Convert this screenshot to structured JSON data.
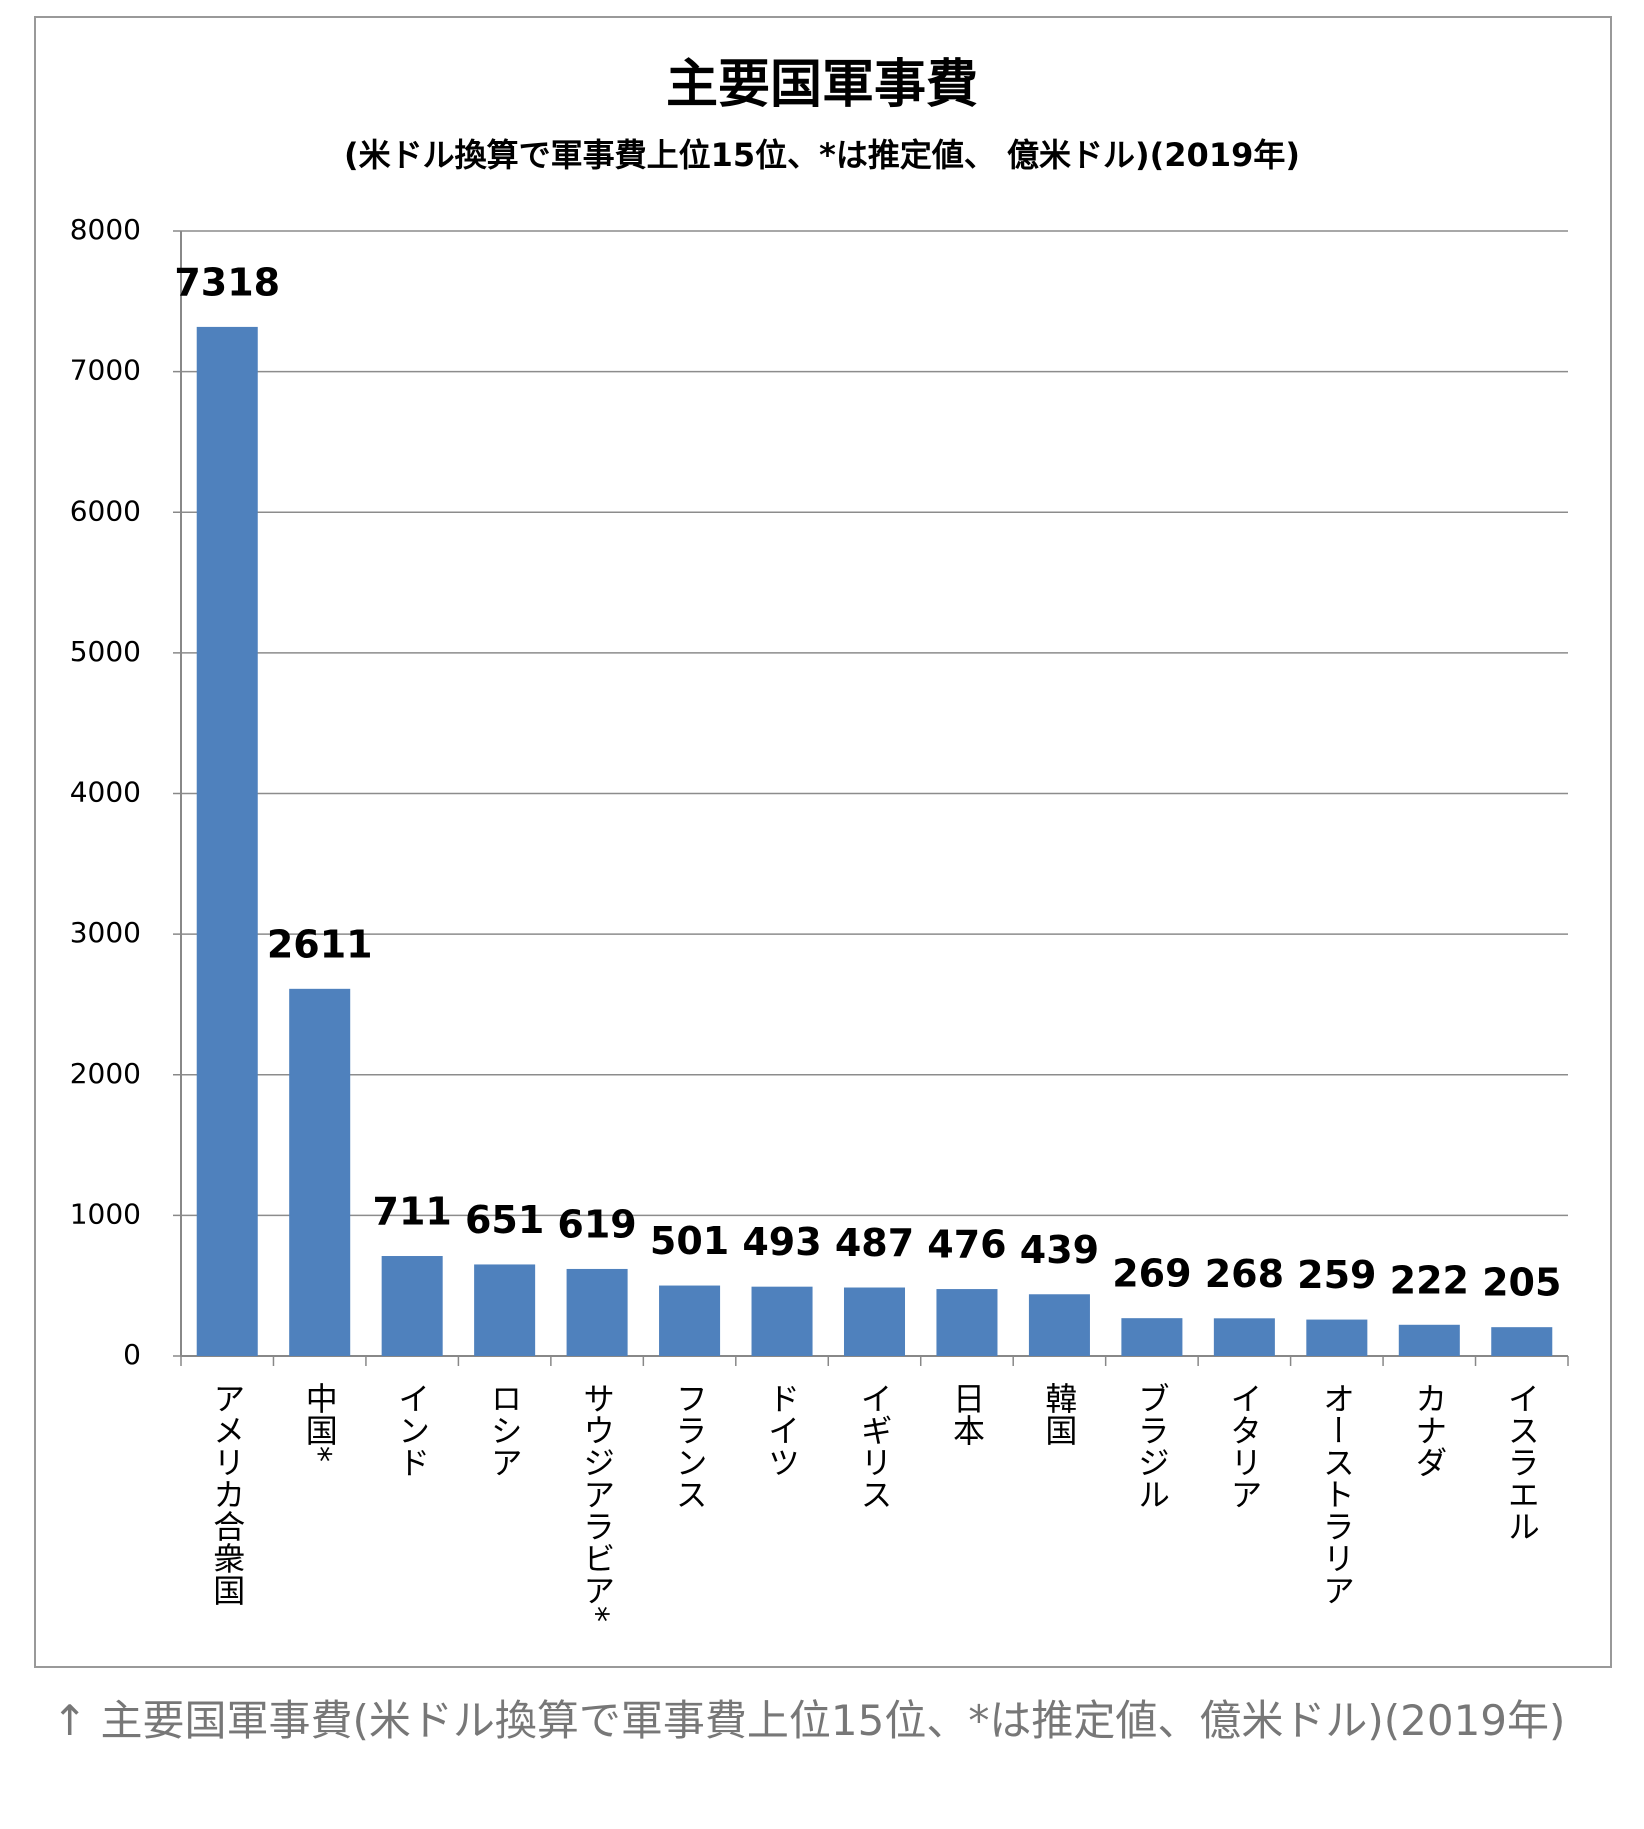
{
  "chart_data": {
    "type": "bar",
    "title": "主要国軍事費",
    "subtitle": "(米ドル換算で軍事費上位15位、*は推定値、 億米ドル)(2019年)",
    "categories": [
      "アメリカ合衆国",
      "中国*",
      "インド",
      "ロシア",
      "サウジアラビア*",
      "フランス",
      "ドイツ",
      "イギリス",
      "日本",
      "韓国",
      "ブラジル",
      "イタリア",
      "オーストラリア",
      "カナダ",
      "イスラエル"
    ],
    "values": [
      7318,
      2611,
      711,
      651,
      619,
      501,
      493,
      487,
      476,
      439,
      269,
      268,
      259,
      222,
      205
    ],
    "color": "#4f81bd",
    "ylim": [
      0,
      8000
    ],
    "yticks": [
      0,
      1000,
      2000,
      3000,
      4000,
      5000,
      6000,
      7000,
      8000
    ],
    "grid": true
  },
  "caption": "↑ 主要国軍事費(米ドル換算で軍事費上位15位、*は推定値、億米ドル)(2019年)"
}
